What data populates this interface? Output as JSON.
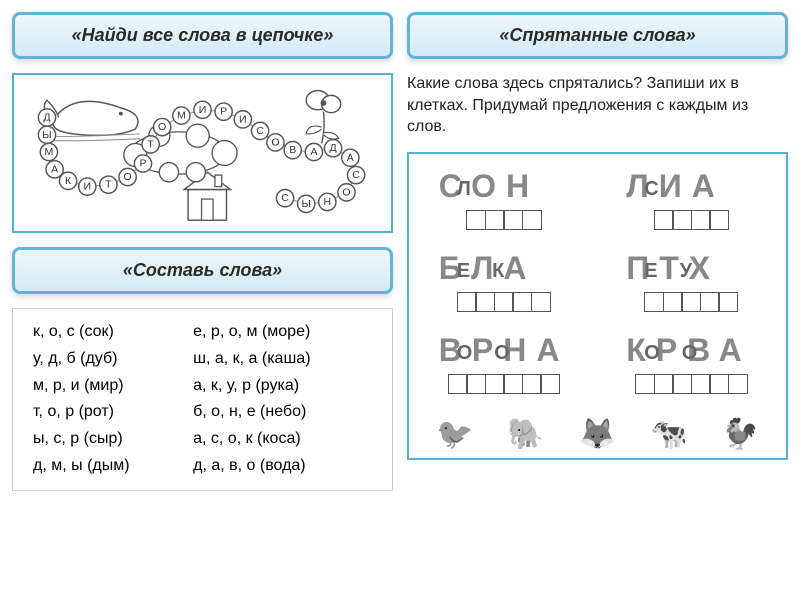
{
  "titles": {
    "chain": "«Найди все слова в цепочке»",
    "hidden": "«Спрятанные слова»",
    "make": "«Составь слова»"
  },
  "hidden_instruction": "Какие слова здесь спрятались? Запиши их в клетках. Придумай предложения с каждым из слов.",
  "chain_letters": [
    "Д",
    "Ы",
    "М",
    "А",
    "К",
    "И",
    "Т",
    "О",
    "Р",
    "Т",
    "О",
    "М",
    "И",
    "Р",
    "И",
    "С",
    "О",
    "В",
    "А",
    "Д",
    "А",
    "С",
    "О",
    "Н",
    "Ы",
    "С"
  ],
  "chain_images": {
    "whale": "кит",
    "flower": "цветок",
    "house": "дом"
  },
  "make_words": {
    "left": [
      "к, о,  с (сок)",
      "у, д, б (дуб)",
      " м, р, и (мир)",
      "т, о, р (рот)",
      " ы, с, р (сыр)",
      "д, м, ы (дым)"
    ],
    "right": [
      "е, р, о, м (море)",
      " ш, а, к, а (каша)",
      " а, к, у, р (рука)",
      " б, о, н, е (небо)",
      " а, с, о, к (коса)",
      "д, а, в, о (вода)"
    ]
  },
  "hidden_words": [
    {
      "big": "СОН",
      "small": "Л",
      "big2": "",
      "cells": 4
    },
    {
      "big": "ЛИА",
      "small": "С",
      "big2": "",
      "cells": 4
    },
    {
      "big": "БЛА",
      "small": "ЕК",
      "big2": "",
      "cells": 5
    },
    {
      "big": "ПТХ",
      "small": "ЕУ",
      "big2": "",
      "cells": 5
    },
    {
      "big": "ВРНА",
      "small": "ОО",
      "big2": "",
      "cells": 6
    },
    {
      "big": "КРВА",
      "small": "ОО",
      "big2": "",
      "cells": 6
    }
  ],
  "animals": [
    "🐦",
    "🐘",
    "🦊",
    "🐄",
    "🐓"
  ],
  "colors": {
    "border": "#53b0d6",
    "title_bg_top": "#eef7fb",
    "title_bg_bot": "#d2ebf5"
  }
}
